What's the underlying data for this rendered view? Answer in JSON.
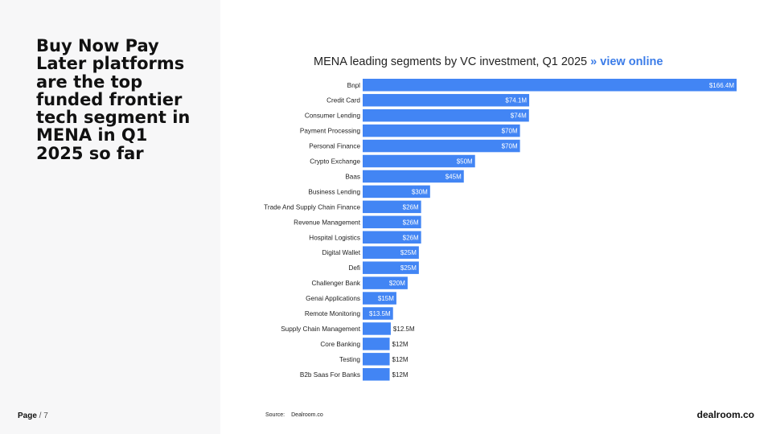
{
  "slide": {
    "headline": "Buy Now Pay Later platforms are the top funded frontier tech segment in MENA in Q1 2025 so far",
    "page_label": "Page",
    "page_rest": " / 7",
    "source_label": "Source:",
    "source_value": "Dealroom.co",
    "brand": "dealroom.co"
  },
  "chart_title": {
    "text": "MENA leading segments by VC investment,  Q1 2025",
    "link": "» view online"
  },
  "colors": {
    "bar": "#4285f4",
    "link": "#3b7ce8"
  },
  "chart_data": {
    "type": "bar",
    "orientation": "horizontal",
    "title": "MENA leading segments by VC investment,  Q1 2025",
    "categories": [
      "Bnpl",
      "Credit Card",
      "Consumer Lending",
      "Payment Processing",
      "Personal Finance",
      "Crypto Exchange",
      "Baas",
      "Business Lending",
      "Trade And Supply Chain Finance",
      "Revenue Management",
      "Hospital Logistics",
      "Digital Wallet",
      "Defi",
      "Challenger Bank",
      "Genai Applications",
      "Remote Monitoring",
      "Supply Chain Management",
      "Core Banking",
      "Testing",
      "B2b Saas For Banks"
    ],
    "values": [
      166.4,
      74.1,
      74,
      70,
      70,
      50,
      45,
      30,
      26,
      26,
      26,
      25,
      25,
      20,
      15,
      13.5,
      12.5,
      12,
      12,
      12
    ],
    "labels": [
      "$166.4M",
      "$74.1M",
      "$74M",
      "$70M",
      "$70M",
      "$50M",
      "$45M",
      "$30M",
      "$26M",
      "$26M",
      "$26M",
      "$25M",
      "$25M",
      "$20M",
      "$15M",
      "$13.5M",
      "$12.5M",
      "$12M",
      "$12M",
      "$12M"
    ],
    "units": "$M",
    "xlim": [
      0,
      166.4
    ],
    "grid": false,
    "legend": "none"
  }
}
